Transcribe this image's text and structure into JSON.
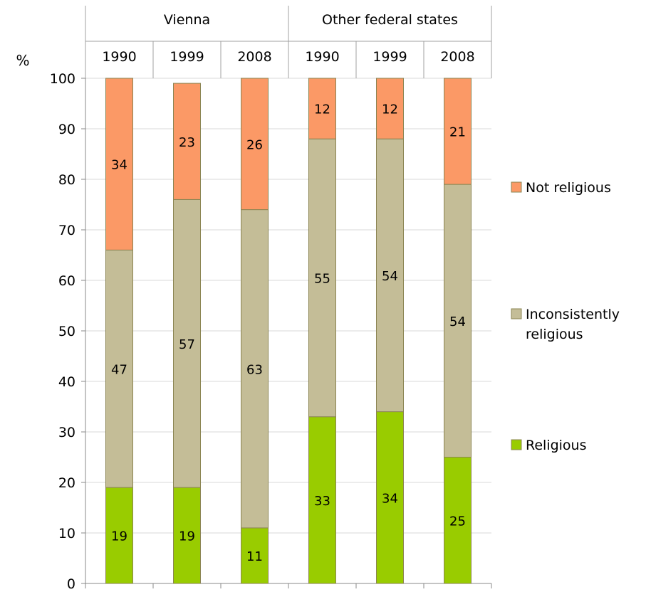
{
  "chart_data": {
    "type": "bar",
    "stacked": true,
    "y_unit_label": "%",
    "ylim": [
      0,
      100
    ],
    "yticks": [
      0,
      10,
      20,
      30,
      40,
      50,
      60,
      70,
      80,
      90,
      100
    ],
    "groups": [
      {
        "label": "Vienna",
        "categories": [
          "1990",
          "1999",
          "2008"
        ]
      },
      {
        "label": "Other federal states",
        "categories": [
          "1990",
          "1999",
          "2008"
        ]
      }
    ],
    "series": [
      {
        "name": "Religious",
        "color": "#99cc00",
        "values": [
          19,
          19,
          11,
          33,
          34,
          25
        ]
      },
      {
        "name": "Inconsistently religious",
        "color": "#c4bd97",
        "values": [
          47,
          57,
          63,
          55,
          54,
          54
        ]
      },
      {
        "name": "Not religious",
        "color": "#fb9966",
        "values": [
          34,
          23,
          26,
          12,
          12,
          21
        ]
      }
    ],
    "legend": {
      "placement": "right",
      "entries": [
        "Not religious",
        "Inconsistently religious",
        "Religious"
      ]
    },
    "grid": true
  }
}
